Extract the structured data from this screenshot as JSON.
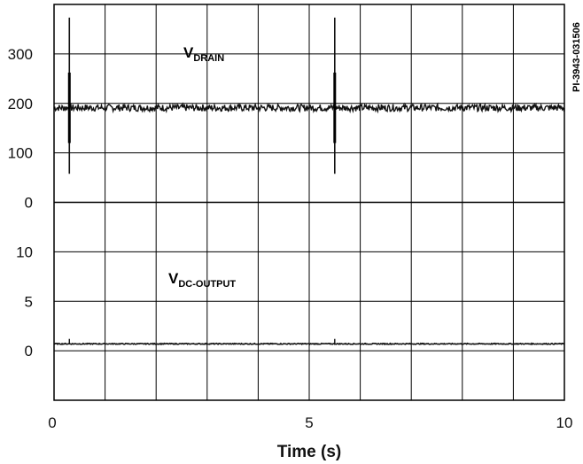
{
  "chart_data": {
    "type": "line",
    "xlabel": "Time (s)",
    "figure_id": "PI-3943-031506",
    "x_ticks": [
      "0",
      "5",
      "10"
    ],
    "xlim": [
      0,
      10
    ],
    "grid": true,
    "panels": [
      {
        "name_main": "V",
        "name_sub": "DRAIN",
        "y_ticks": [
          "300",
          "200",
          "100",
          "0"
        ],
        "ylim": [
          -50,
          400
        ],
        "baseline": 165,
        "noise_amplitude": 8,
        "spikes": [
          {
            "x": 0.3,
            "max": 370,
            "min": 15
          },
          {
            "x": 5.5,
            "max": 370,
            "min": 15
          }
        ]
      },
      {
        "name_main": "V",
        "name_sub": "DC-OUTPUT",
        "y_ticks": [
          "10",
          "5",
          "0"
        ],
        "ylim": [
          -5,
          15
        ],
        "baseline": 0.7,
        "noise_amplitude": 0.05,
        "spikes": [
          {
            "x": 0.3,
            "max": 1.2,
            "min": 0.7
          },
          {
            "x": 5.5,
            "max": 1.2,
            "min": 0.7
          }
        ]
      }
    ]
  }
}
